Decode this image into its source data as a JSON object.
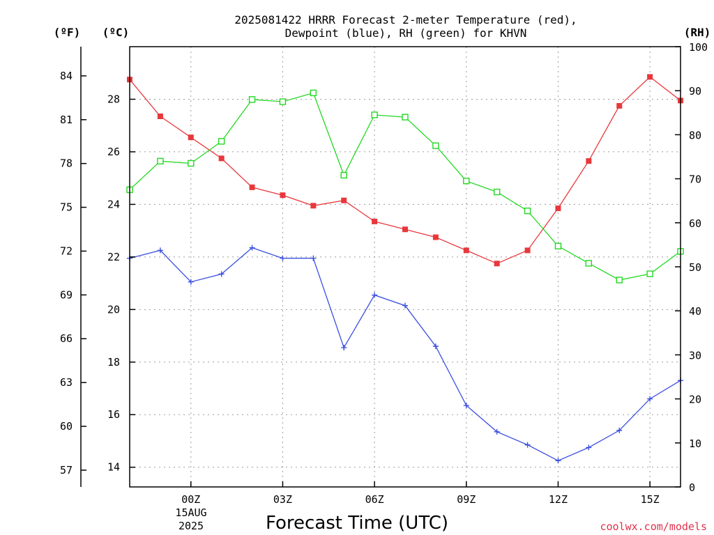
{
  "chart_data": {
    "type": "line",
    "title_lines": [
      "2025081422 HRRR Forecast 2-meter Temperature (red),",
      "Dewpoint (blue), RH (green) for KHVN"
    ],
    "xlabel": "Forecast Time (UTC)",
    "date_label": [
      "15AUG",
      "2025"
    ],
    "credit": "coolwx.com/models",
    "units": {
      "fahrenheit": "(ºF)",
      "celsius": "(ºC)",
      "rh": "(RH)"
    },
    "x_hours": [
      -2,
      -1,
      0,
      1,
      2,
      3,
      4,
      5,
      6,
      7,
      8,
      9,
      10,
      11,
      12,
      13,
      14,
      15,
      16
    ],
    "x_range": [
      -2,
      16
    ],
    "x_ticks": [
      {
        "hour": 0,
        "label": "00Z"
      },
      {
        "hour": 3,
        "label": "03Z"
      },
      {
        "hour": 6,
        "label": "06Z"
      },
      {
        "hour": 9,
        "label": "09Z"
      },
      {
        "hour": 12,
        "label": "12Z"
      },
      {
        "hour": 15,
        "label": "15Z"
      }
    ],
    "celsius_axis": {
      "range": [
        13.25,
        30.0
      ],
      "ticks": [
        14,
        16,
        18,
        20,
        22,
        24,
        26,
        28
      ],
      "labels": [
        "14",
        "16",
        "18",
        "20",
        "22",
        "24",
        "26",
        "28"
      ]
    },
    "fahrenheit_axis": {
      "ticks": [
        57,
        60,
        63,
        66,
        69,
        72,
        75,
        78,
        81,
        84
      ],
      "labels": [
        "57",
        "60",
        "63",
        "66",
        "69",
        "72",
        "75",
        "78",
        "81",
        "84"
      ]
    },
    "rh_axis": {
      "range": [
        0,
        100
      ],
      "ticks": [
        0,
        10,
        20,
        30,
        40,
        50,
        60,
        70,
        80,
        90,
        100
      ],
      "labels": [
        "0",
        "10",
        "20",
        "30",
        "40",
        "50",
        "60",
        "70",
        "80",
        "90",
        "100"
      ]
    },
    "series": [
      {
        "key": "temperature",
        "axis": "celsius",
        "color": "#e8383c",
        "marker": "filled-square",
        "values": [
          28.75,
          27.35,
          26.55,
          25.75,
          24.65,
          24.35,
          23.95,
          24.15,
          23.35,
          23.05,
          22.75,
          22.25,
          21.75,
          22.25,
          23.85,
          25.65,
          27.75,
          28.85,
          27.95
        ]
      },
      {
        "key": "dewpoint",
        "axis": "celsius",
        "color": "#3a4ee0",
        "marker": "plus",
        "values": [
          21.95,
          22.25,
          21.05,
          21.35,
          22.35,
          21.95,
          21.95,
          18.55,
          20.55,
          20.15,
          18.6,
          16.35,
          15.35,
          14.85,
          14.25,
          14.75,
          15.4,
          16.6,
          17.3
        ]
      },
      {
        "key": "rh",
        "axis": "rh",
        "color": "#22d822",
        "marker": "open-square",
        "values": [
          67.5,
          74.0,
          73.5,
          78.5,
          88.0,
          87.5,
          89.5,
          70.8,
          84.5,
          84.0,
          77.5,
          69.5,
          67.0,
          62.7,
          54.7,
          50.8,
          47.0,
          48.4,
          53.5
        ]
      }
    ]
  }
}
